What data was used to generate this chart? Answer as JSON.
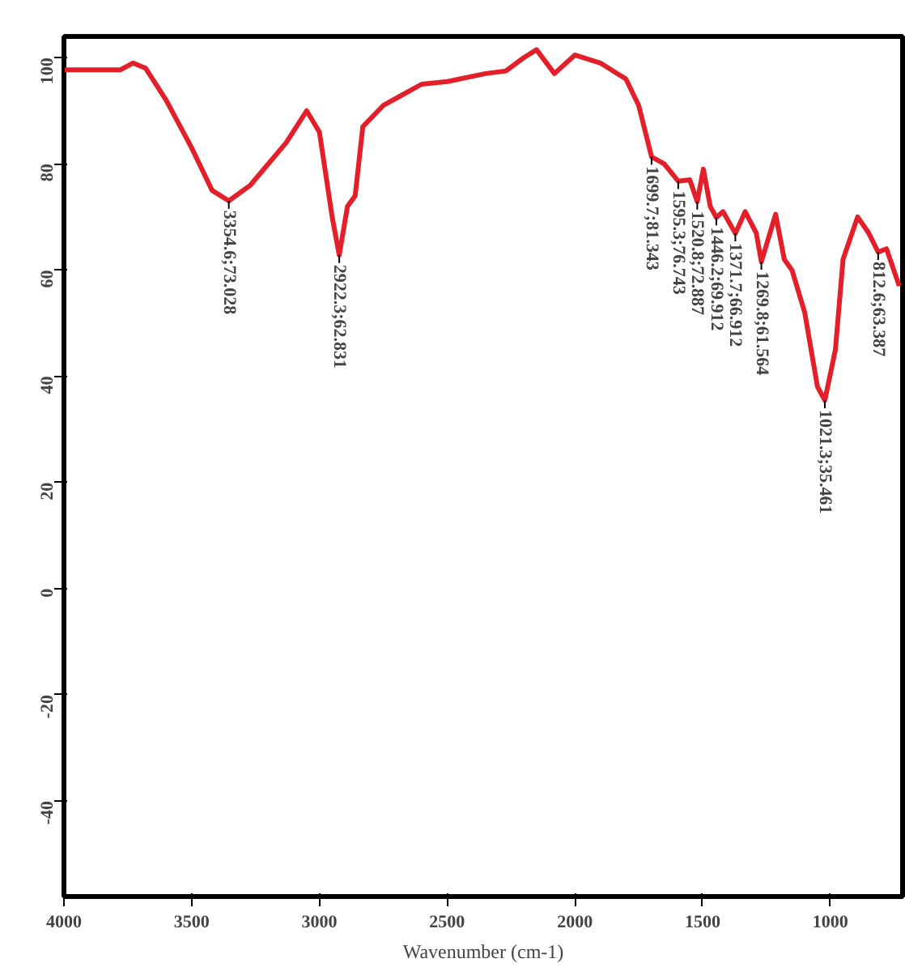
{
  "chart_data": {
    "type": "line",
    "xlabel": "Wavenumber (cm-1)",
    "x": [
      4000,
      3900,
      3780,
      3730,
      3680,
      3600,
      3500,
      3420,
      3354.6,
      3270,
      3130,
      3050,
      3000,
      2950,
      2922.3,
      2890,
      2860,
      2830,
      2750,
      2600,
      2500,
      2350,
      2270,
      2200,
      2150,
      2080,
      2000,
      1900,
      1800,
      1750,
      1699.7,
      1650,
      1595.3,
      1550,
      1520.8,
      1497,
      1470,
      1446.2,
      1420,
      1371.7,
      1333,
      1290,
      1269.8,
      1214,
      1180,
      1150,
      1100,
      1050,
      1021.3,
      980,
      950,
      893,
      850,
      812.6,
      780,
      730
    ],
    "series": [
      {
        "color": "#e3202a",
        "values": [
          97.7,
          97.7,
          97.7,
          99,
          98,
          92,
          83,
          75,
          73.028,
          76,
          84,
          90,
          86,
          70,
          62.831,
          72,
          74,
          87,
          91,
          95,
          95.5,
          97,
          97.5,
          100,
          101.5,
          97,
          100.5,
          99,
          96,
          91,
          81.343,
          80,
          76.743,
          77,
          72.887,
          79,
          72,
          69.912,
          71,
          66.912,
          71,
          67,
          61.564,
          70.5,
          62,
          60,
          52,
          38,
          35.461,
          45,
          62,
          70,
          67,
          63.387,
          64,
          57
        ]
      }
    ],
    "annotations": [
      {
        "text": "3354.6;73.028",
        "x": 3354.6,
        "y": 73.028
      },
      {
        "text": "2922.3;62.831",
        "x": 2922.3,
        "y": 62.831
      },
      {
        "text": "1699.7;81.343",
        "x": 1699.7,
        "y": 81.343
      },
      {
        "text": "1595.3;76.743",
        "x": 1595.3,
        "y": 76.743
      },
      {
        "text": "1520.8;72.887",
        "x": 1520.8,
        "y": 72.887
      },
      {
        "text": "1446.2;69.912",
        "x": 1446.2,
        "y": 69.912
      },
      {
        "text": "1371.7;66.912",
        "x": 1371.7,
        "y": 66.912
      },
      {
        "text": "1269.8;61.564",
        "x": 1269.8,
        "y": 61.564
      },
      {
        "text": "1021.3;35.461",
        "x": 1021.3,
        "y": 35.461
      },
      {
        "text": "812.6;63.387",
        "x": 812.6,
        "y": 63.387
      }
    ],
    "xlim": [
      4000,
      717
    ],
    "ylim": [
      -58,
      104
    ],
    "xticks": [
      4000,
      3500,
      3000,
      2500,
      2000,
      1500,
      1000
    ],
    "yticks": [
      100,
      80,
      60,
      40,
      20,
      0,
      -20,
      -40
    ],
    "grid": false,
    "marker": "none",
    "line_style": "solid"
  }
}
